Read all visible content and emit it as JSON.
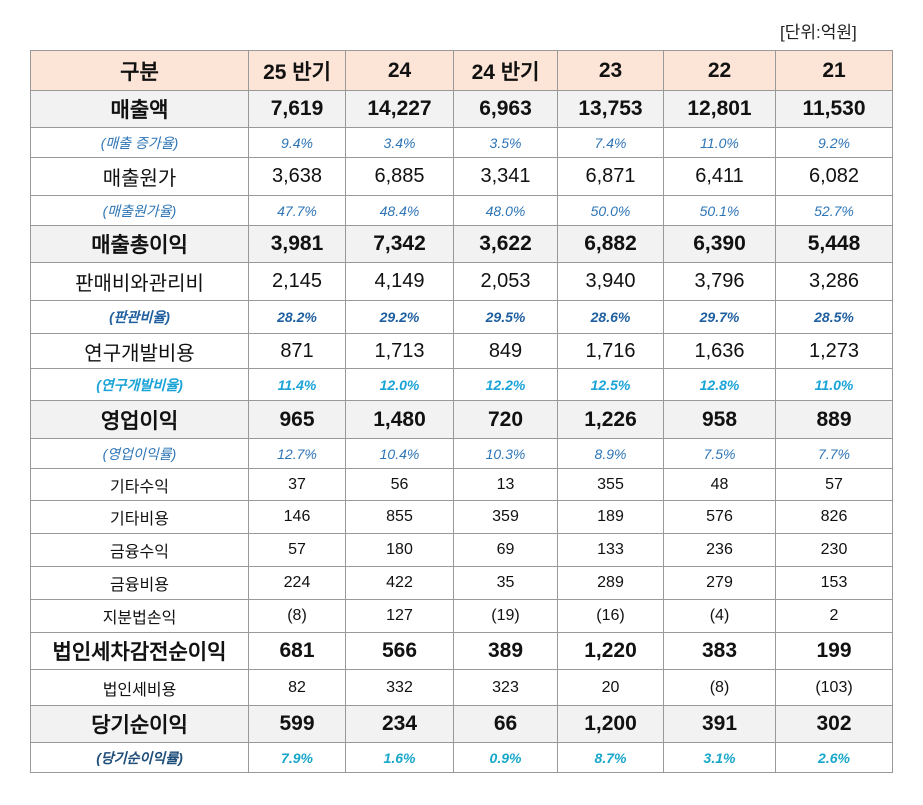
{
  "unit": "[단위:억원]",
  "table": {
    "header": [
      "구분",
      "25 반기",
      "24",
      "24 반기",
      "23",
      "22",
      "21"
    ],
    "rows": [
      [
        "매출액",
        "7,619",
        "14,227",
        "6,963",
        "13,753",
        "12,801",
        "11,530"
      ],
      [
        "(매출 증가율)",
        "9.4%",
        "3.4%",
        "3.5%",
        "7.4%",
        "11.0%",
        "9.2%"
      ],
      [
        "매출원가",
        "3,638",
        "6,885",
        "3,341",
        "6,871",
        "6,411",
        "6,082"
      ],
      [
        "(매출원가율)",
        "47.7%",
        "48.4%",
        "48.0%",
        "50.0%",
        "50.1%",
        "52.7%"
      ],
      [
        "매출총이익",
        "3,981",
        "7,342",
        "3,622",
        "6,882",
        "6,390",
        "5,448"
      ],
      [
        "판매비와관리비",
        "2,145",
        "4,149",
        "2,053",
        "3,940",
        "3,796",
        "3,286"
      ],
      [
        "(판관비율)",
        "28.2%",
        "29.2%",
        "29.5%",
        "28.6%",
        "29.7%",
        "28.5%"
      ],
      [
        "연구개발비용",
        "871",
        "1,713",
        "849",
        "1,716",
        "1,636",
        "1,273"
      ],
      [
        "(연구개발비율)",
        "11.4%",
        "12.0%",
        "12.2%",
        "12.5%",
        "12.8%",
        "11.0%"
      ],
      [
        "영업이익",
        "965",
        "1,480",
        "720",
        "1,226",
        "958",
        "889"
      ],
      [
        "(영업이익률)",
        "12.7%",
        "10.4%",
        "10.3%",
        "8.9%",
        "7.5%",
        "7.7%"
      ],
      [
        "기타수익",
        "37",
        "56",
        "13",
        "355",
        "48",
        "57"
      ],
      [
        "기타비용",
        "146",
        "855",
        "359",
        "189",
        "576",
        "826"
      ],
      [
        "금융수익",
        "57",
        "180",
        "69",
        "133",
        "236",
        "230"
      ],
      [
        "금융비용",
        "224",
        "422",
        "35",
        "289",
        "279",
        "153"
      ],
      [
        "지분법손익",
        "(8)",
        "127",
        "(19)",
        "(16)",
        "(4)",
        "2"
      ],
      [
        "법인세차감전순이익",
        "681",
        "566",
        "389",
        "1,220",
        "383",
        "199"
      ],
      [
        "법인세비용",
        "82",
        "332",
        "323",
        "20",
        "(8)",
        "(103)"
      ],
      [
        "당기순이익",
        "599",
        "234",
        "66",
        "1,200",
        "391",
        "302"
      ],
      [
        "(당기순이익률)",
        "7.9%",
        "1.6%",
        "0.9%",
        "8.7%",
        "3.1%",
        "2.6%"
      ]
    ]
  }
}
